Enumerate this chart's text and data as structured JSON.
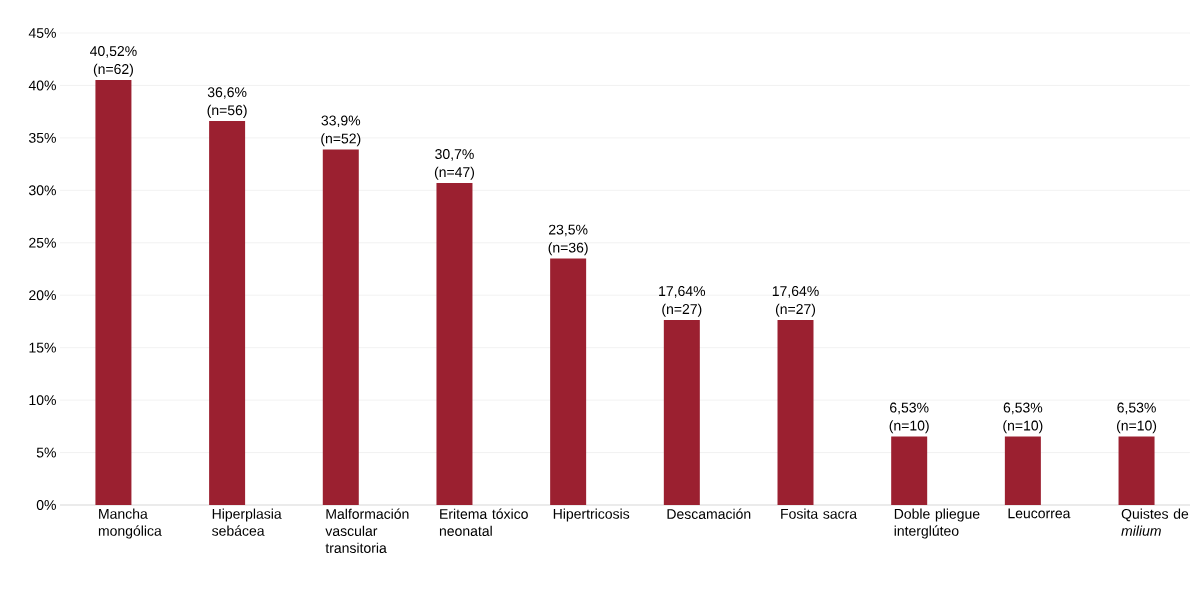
{
  "chart_data": {
    "type": "bar",
    "categories": [
      "Mancha mongólica",
      "Hiperplasia sebácea",
      "Malformación vascular transitoria",
      "Eritema tóxico neonatal",
      "Hipertricosis",
      "Descamación",
      "Fosita sacra",
      "Doble pliegue interglúteo",
      "Leucorrea",
      "Quistes de *milium*"
    ],
    "values": [
      40.52,
      36.6,
      33.9,
      30.7,
      23.5,
      17.64,
      17.64,
      6.53,
      6.53,
      6.53
    ],
    "value_labels": [
      "40,52% (n=62)",
      "36,6% (n=56)",
      "33,9% (n=52)",
      "30,7% (n=47)",
      "23,5% (n=36)",
      "17,64% (n=27)",
      "17,64% (n=27)",
      "6,53% (n=10)",
      "6,53% (n=10)",
      "6,53% (n=10)"
    ],
    "color": "#9b2030",
    "ylim": [
      0,
      45
    ],
    "yticks": [
      {
        "value": 0,
        "label": "0%"
      },
      {
        "value": 5,
        "label": "5%"
      },
      {
        "value": 10,
        "label": "10%"
      },
      {
        "value": 15,
        "label": "15%"
      },
      {
        "value": 20,
        "label": "20%"
      },
      {
        "value": 25,
        "label": "25%"
      },
      {
        "value": 30,
        "label": "30%"
      },
      {
        "value": 35,
        "label": "35%"
      },
      {
        "value": 40,
        "label": "40%"
      },
      {
        "value": 45,
        "label": "45%"
      }
    ],
    "grid": "y"
  }
}
